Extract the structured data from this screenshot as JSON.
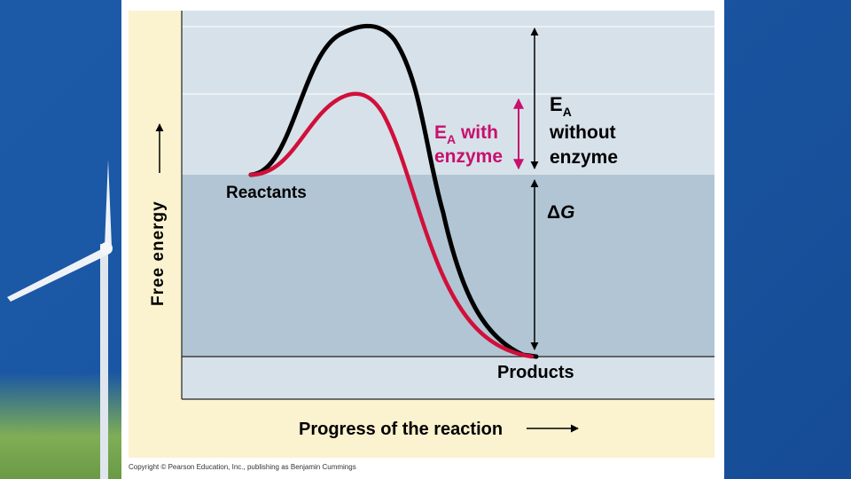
{
  "diagram": {
    "y_axis_label": "Free energy",
    "x_axis_label": "Progress of the reaction",
    "reactants_label": "Reactants",
    "products_label": "Products",
    "ea_with_enzyme": {
      "E": "E",
      "sub": "A",
      "line1_rest": " with",
      "line2": "enzyme"
    },
    "ea_without_enzyme": {
      "E": "E",
      "sub": "A",
      "line2": "without",
      "line3": "enzyme"
    },
    "delta_g": {
      "delta": "Δ",
      "G": "G"
    },
    "colors": {
      "curve_without_enzyme": "#000000",
      "curve_with_enzyme": "#d0103a",
      "ea_with_enzyme_label": "#c8106e",
      "upper_band": "#d7e1ea",
      "middle_band": "#b2c5d4",
      "lower_band": "#d7e1ea"
    }
  },
  "footer": {
    "copyright": "Copyright © Pearson Education, Inc., publishing as Benjamin Cummings"
  }
}
